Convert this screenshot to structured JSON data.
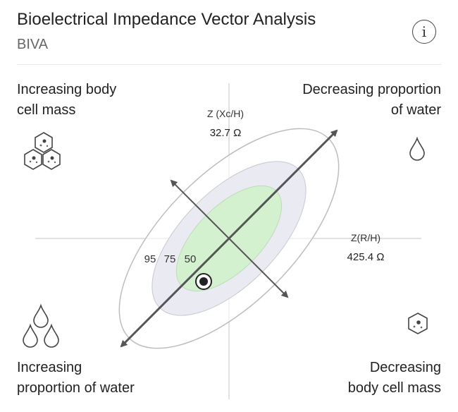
{
  "header": {
    "title": "Bioelectrical Impedance Vector Analysis",
    "subtitle": "BIVA",
    "info_icon": "info-icon"
  },
  "quadrants": {
    "top_left": {
      "line1": "Increasing body",
      "line2": "cell mass",
      "icon": "cells-cluster-icon"
    },
    "top_right": {
      "line1": "Decreasing proportion",
      "line2": "of water",
      "icon": "single-water-drop-icon"
    },
    "bottom_left": {
      "line1": "Increasing",
      "line2": "proportion of water",
      "icon": "water-drops-icon"
    },
    "bottom_right": {
      "line1": "Decreasing",
      "line2": "body cell mass",
      "icon": "single-cell-icon"
    }
  },
  "axes": {
    "y_label": "Z (Xc/H)",
    "y_value": "32.7 Ω",
    "x_label": "Z(R/H)",
    "x_value": "425.4 Ω"
  },
  "ellipses": {
    "labels": [
      "95",
      "75",
      "50"
    ],
    "colors": {
      "outer": "#ffffff",
      "middle": "#eaeaf3",
      "inner": "#d3f1cf"
    }
  },
  "measurement": {
    "marker": "measurement-point"
  }
}
